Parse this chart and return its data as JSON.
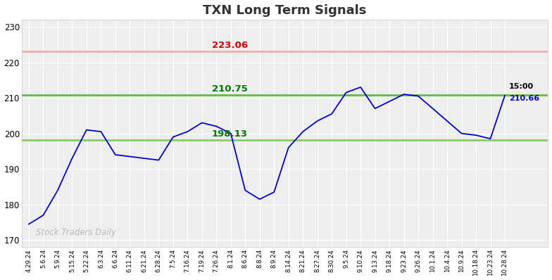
{
  "title": "TXN Long Term Signals",
  "title_color": "#333333",
  "background_color": "#ffffff",
  "plot_bg_color": "#eeeeee",
  "line_color": "#0000cc",
  "hline_red": 223.06,
  "hline_red_color": "#ffaaaa",
  "hline_green_upper": 210.75,
  "hline_green_lower": 198.13,
  "hline_green_color": "#66bb44",
  "hline_green_lower_color": "#88cc66",
  "label_red": "223.06",
  "label_green_upper": "210.75",
  "label_green_lower": "198.13",
  "label_red_color": "#cc0000",
  "label_green_color": "#007700",
  "last_price_label": "210.66",
  "last_time_label": "15:00",
  "watermark": "Stock Traders Daily",
  "watermark_color": "#bbbbbb",
  "ylim": [
    168,
    232
  ],
  "yticks": [
    170,
    180,
    190,
    200,
    210,
    220,
    230
  ],
  "x_labels": [
    "4.29.24",
    "5.6.24",
    "5.9.24",
    "5.15.24",
    "5.22.24",
    "6.3.24",
    "6.6.24",
    "6.11.24",
    "6.21.24",
    "6.28.24",
    "7.5.24",
    "7.16.24",
    "7.19.24",
    "7.26.24",
    "8.1.24",
    "8.6.24",
    "8.8.24",
    "8.9.24",
    "8.14.24",
    "8.21.24",
    "8.27.24",
    "8.30.24",
    "9.5.24",
    "9.10.24",
    "9.13.24",
    "9.18.24",
    "9.23.24",
    "9.26.24",
    "10.1.24",
    "10.4.24",
    "10.9.24",
    "10.18.24",
    "10.23.24",
    "10.28.24"
  ],
  "prices": [
    174.5,
    177.0,
    184.0,
    193.0,
    201.0,
    200.5,
    194.0,
    193.5,
    193.0,
    192.5,
    199.0,
    200.5,
    203.0,
    202.0,
    200.0,
    184.0,
    181.5,
    183.5,
    196.0,
    200.5,
    203.5,
    205.5,
    211.5,
    213.0,
    207.0,
    209.0,
    211.0,
    210.5,
    207.0,
    203.5,
    200.0,
    199.5,
    198.5,
    210.66
  ]
}
